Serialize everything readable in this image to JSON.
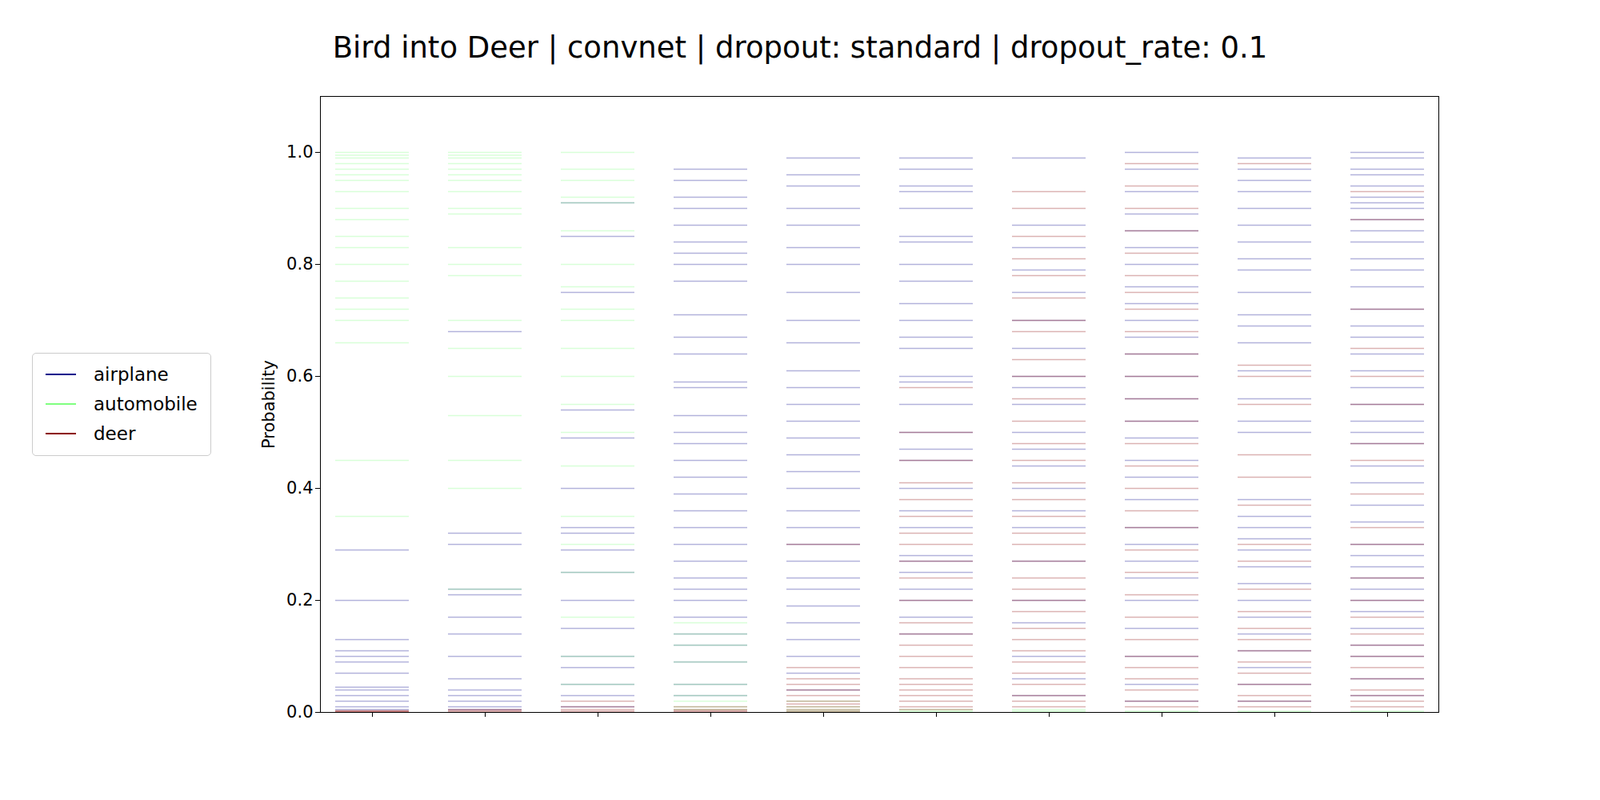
{
  "chart_data": {
    "type": "strip",
    "title": "Bird into Deer | convnet | dropout: standard | dropout_rate: 0.1",
    "y_label": "Probability",
    "categories": [
      null,
      null,
      null,
      null,
      null,
      null,
      null,
      null,
      null,
      null
    ],
    "ylim": [
      0,
      1.1
    ],
    "yticks": [
      {
        "value": 0,
        "label": "0.0"
      },
      0.2,
      0.4,
      0.6,
      0.8,
      {
        "value": 1,
        "label": "1.0"
      }
    ],
    "tick_labels": "y",
    "legend": "center left",
    "series": [
      {
        "name": "airplane",
        "color": "#00008b",
        "values": [
          [
            0.005,
            0.01,
            0.02,
            0.03,
            0.04,
            0.045,
            0.07,
            0.09,
            0.1,
            0.11,
            0.13,
            0.2,
            0.29
          ],
          [
            0.005,
            0.01,
            0.02,
            0.03,
            0.04,
            0.06,
            0.1,
            0.14,
            0.17,
            0.21,
            0.22,
            0.3,
            0.32,
            0.68
          ],
          [
            0.91,
            0.85,
            0.75,
            0.54,
            0.49,
            0.4,
            0.33,
            0.32,
            0.29,
            0.25,
            0.2,
            0.15,
            0.1,
            0.08,
            0.05,
            0.03,
            0.01
          ],
          [
            0.97,
            0.95,
            0.92,
            0.9,
            0.87,
            0.84,
            0.82,
            0.8,
            0.77,
            0.71,
            0.67,
            0.64,
            0.59,
            0.58,
            0.53,
            0.5,
            0.48,
            0.45,
            0.42,
            0.39,
            0.36,
            0.33,
            0.3,
            0.27,
            0.24,
            0.22,
            0.2,
            0.17,
            0.14,
            0.12,
            0.09,
            0.05,
            0.03
          ],
          [
            0.99,
            0.96,
            0.94,
            0.9,
            0.87,
            0.83,
            0.8,
            0.75,
            0.7,
            0.66,
            0.61,
            0.58,
            0.55,
            0.52,
            0.49,
            0.46,
            0.43,
            0.4,
            0.36,
            0.33,
            0.3,
            0.27,
            0.24,
            0.22,
            0.19,
            0.16,
            0.13,
            0.1,
            0.07,
            0.04
          ],
          [
            0.99,
            0.97,
            0.94,
            0.93,
            0.9,
            0.85,
            0.84,
            0.8,
            0.77,
            0.73,
            0.7,
            0.67,
            0.65,
            0.6,
            0.59,
            0.55,
            0.5,
            0.47,
            0.45,
            0.4,
            0.36,
            0.33,
            0.28,
            0.27,
            0.25,
            0.22,
            0.2,
            0.17,
            0.14
          ],
          [
            0.99,
            0.87,
            0.83,
            0.79,
            0.75,
            0.7,
            0.65,
            0.6,
            0.58,
            0.55,
            0.5,
            0.47,
            0.44,
            0.4,
            0.36,
            0.33,
            0.27,
            0.2,
            0.16,
            0.1,
            0.06,
            0.03
          ],
          [
            1.0,
            0.97,
            0.93,
            0.89,
            0.86,
            0.83,
            0.8,
            0.76,
            0.73,
            0.7,
            0.67,
            0.64,
            0.6,
            0.56,
            0.52,
            0.49,
            0.45,
            0.42,
            0.38,
            0.33,
            0.3,
            0.27,
            0.24,
            0.2,
            0.15,
            0.1,
            0.05,
            0.02
          ],
          [
            0.99,
            0.97,
            0.95,
            0.93,
            0.9,
            0.87,
            0.84,
            0.81,
            0.79,
            0.75,
            0.71,
            0.69,
            0.66,
            0.61,
            0.56,
            0.52,
            0.5,
            0.38,
            0.35,
            0.33,
            0.31,
            0.29,
            0.26,
            0.23,
            0.2,
            0.17,
            0.14,
            0.11,
            0.08,
            0.05,
            0.02
          ],
          [
            1.0,
            0.99,
            0.97,
            0.96,
            0.94,
            0.92,
            0.91,
            0.9,
            0.88,
            0.86,
            0.84,
            0.81,
            0.79,
            0.76,
            0.72,
            0.69,
            0.67,
            0.64,
            0.61,
            0.58,
            0.55,
            0.52,
            0.5,
            0.48,
            0.44,
            0.41,
            0.37,
            0.34,
            0.3,
            0.28,
            0.26,
            0.24,
            0.22,
            0.2,
            0.18,
            0.15,
            0.12,
            0.1,
            0.06,
            0.03
          ]
        ]
      },
      {
        "name": "automobile",
        "color": "#7fff7f",
        "values": [
          [
            1.0,
            0.995,
            0.99,
            0.98,
            0.97,
            0.96,
            0.95,
            0.93,
            0.9,
            0.88,
            0.85,
            0.83,
            0.8,
            0.77,
            0.74,
            0.72,
            0.7,
            0.66,
            0.45,
            0.35
          ],
          [
            1.0,
            0.995,
            0.99,
            0.98,
            0.97,
            0.96,
            0.95,
            0.93,
            0.9,
            0.89,
            0.83,
            0.8,
            0.78,
            0.7,
            0.65,
            0.6,
            0.53,
            0.45,
            0.4,
            0.22
          ],
          [
            1.0,
            0.97,
            0.95,
            0.92,
            0.91,
            0.86,
            0.8,
            0.76,
            0.72,
            0.7,
            0.65,
            0.6,
            0.55,
            0.5,
            0.44,
            0.35,
            0.3,
            0.25,
            0.17,
            0.1,
            0.05
          ],
          [
            0.16,
            0.14,
            0.12,
            0.09,
            0.05,
            0.03,
            0.02,
            0.01,
            0.005
          ],
          [
            0.02,
            0.01,
            0.005,
            0.002
          ],
          [
            0.005,
            0.002
          ],
          [
            0.005,
            0.002
          ],
          [
            0.002
          ],
          [
            0.002
          ],
          [
            0.002
          ]
        ]
      },
      {
        "name": "deer",
        "color": "#8b0000",
        "values": [
          [
            0.001,
            0.002,
            0.003
          ],
          [
            0.001,
            0.003,
            0.005
          ],
          [
            0.002,
            0.005,
            0.01,
            0.02
          ],
          [
            0.001,
            0.003,
            0.005,
            0.01
          ],
          [
            0.3,
            0.08,
            0.06,
            0.05,
            0.04,
            0.03,
            0.02,
            0.015,
            0.01,
            0.005,
            0.002
          ],
          [
            0.58,
            0.5,
            0.45,
            0.41,
            0.38,
            0.35,
            0.32,
            0.3,
            0.27,
            0.24,
            0.2,
            0.16,
            0.14,
            0.12,
            0.1,
            0.08,
            0.06,
            0.05,
            0.04,
            0.03,
            0.02,
            0.01,
            0.005
          ],
          [
            0.93,
            0.9,
            0.85,
            0.81,
            0.78,
            0.74,
            0.7,
            0.68,
            0.63,
            0.6,
            0.56,
            0.52,
            0.48,
            0.45,
            0.41,
            0.38,
            0.35,
            0.32,
            0.3,
            0.27,
            0.24,
            0.22,
            0.2,
            0.18,
            0.15,
            0.13,
            0.11,
            0.09,
            0.07,
            0.05,
            0.03,
            0.02,
            0.01
          ],
          [
            0.98,
            0.94,
            0.9,
            0.86,
            0.82,
            0.78,
            0.75,
            0.72,
            0.68,
            0.64,
            0.6,
            0.56,
            0.52,
            0.48,
            0.44,
            0.4,
            0.36,
            0.33,
            0.29,
            0.25,
            0.21,
            0.17,
            0.13,
            0.1,
            0.08,
            0.06,
            0.04,
            0.02,
            0.01
          ],
          [
            0.98,
            0.62,
            0.6,
            0.55,
            0.46,
            0.42,
            0.37,
            0.3,
            0.27,
            0.22,
            0.18,
            0.15,
            0.13,
            0.11,
            0.09,
            0.07,
            0.05,
            0.03,
            0.02,
            0.01
          ],
          [
            0.93,
            0.88,
            0.72,
            0.65,
            0.6,
            0.55,
            0.48,
            0.45,
            0.39,
            0.33,
            0.3,
            0.24,
            0.2,
            0.17,
            0.14,
            0.12,
            0.1,
            0.08,
            0.06,
            0.04,
            0.03,
            0.02,
            0.01
          ]
        ]
      }
    ]
  }
}
